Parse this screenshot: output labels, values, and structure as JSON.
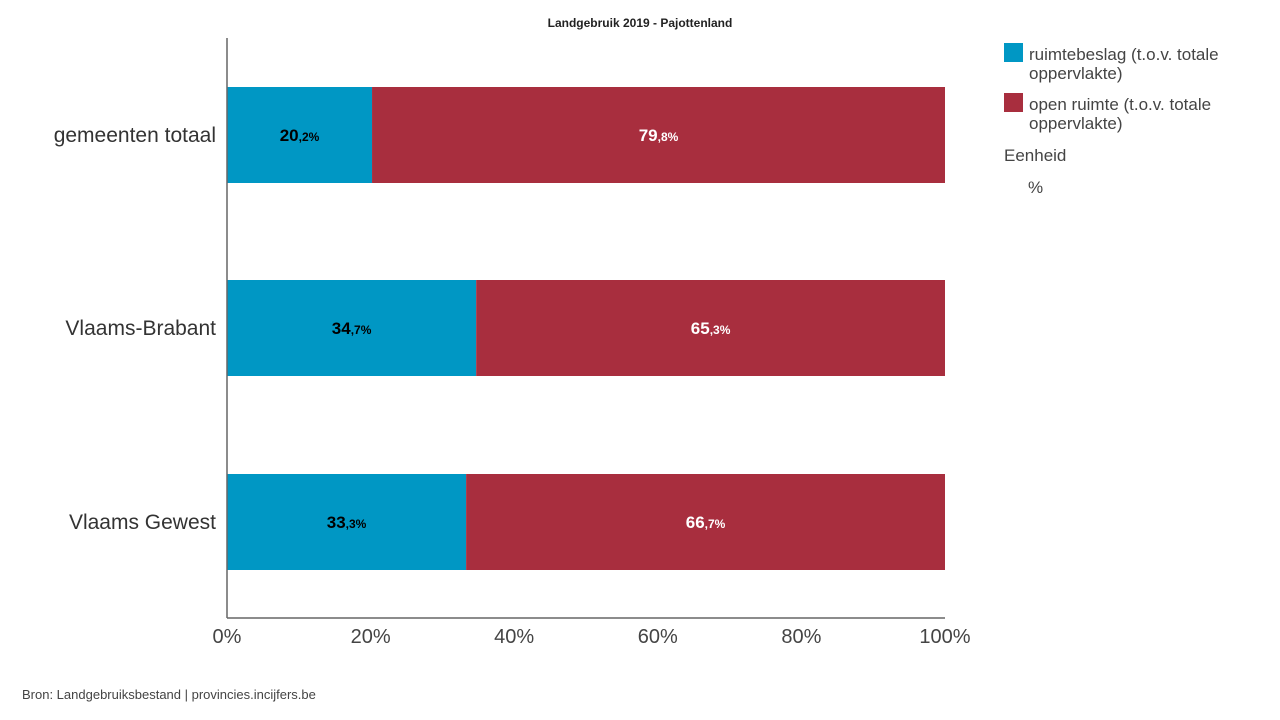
{
  "chart_data": {
    "type": "bar",
    "orientation": "horizontal",
    "stacked": true,
    "title": "Landgebruik 2019 - Pajottenland",
    "categories": [
      "gemeenten totaal",
      "Vlaams-Brabant",
      "Vlaams Gewest"
    ],
    "series": [
      {
        "name": "ruimtebeslag (t.o.v. totale oppervlakte)",
        "color": "#0097c4",
        "label_color": "#000000",
        "values": [
          20.2,
          34.7,
          33.3
        ],
        "labels": [
          {
            "int": "20",
            "dec": ",2%"
          },
          {
            "int": "34",
            "dec": ",7%"
          },
          {
            "int": "33",
            "dec": ",3%"
          }
        ]
      },
      {
        "name": "open ruimte (t.o.v. totale oppervlakte)",
        "color": "#a82e3e",
        "label_color": "#ffffff",
        "values": [
          79.8,
          65.3,
          66.7
        ],
        "labels": [
          {
            "int": "79",
            "dec": ",8%"
          },
          {
            "int": "65",
            "dec": ",3%"
          },
          {
            "int": "66",
            "dec": ",7%"
          }
        ]
      }
    ],
    "xlim": [
      0,
      100
    ],
    "xticks": [
      "0%",
      "20%",
      "40%",
      "60%",
      "80%",
      "100%"
    ],
    "grid": false,
    "legend_position": "right"
  },
  "legend": {
    "series_lines": [
      [
        "ruimtebeslag (t.o.v. totale",
        "oppervlakte)"
      ],
      [
        "open ruimte (t.o.v. totale",
        "oppervlakte)"
      ]
    ],
    "unit_title": "Eenheid",
    "unit_value": "%"
  },
  "source": "Bron: Landgebruiksbestand | provincies.incijfers.be"
}
